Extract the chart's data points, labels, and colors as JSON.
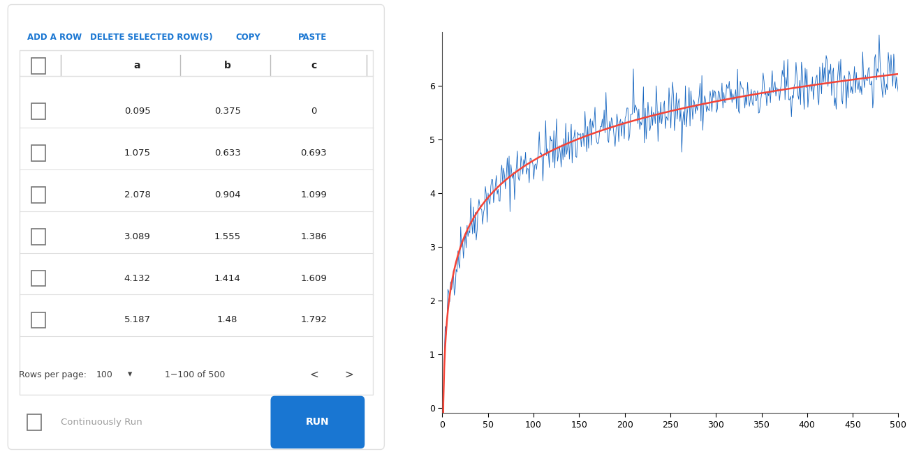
{
  "table_data": {
    "headers": [
      "a",
      "b",
      "c"
    ],
    "rows": [
      [
        0.095,
        0.375,
        0
      ],
      [
        1.075,
        0.633,
        0.693
      ],
      [
        2.078,
        0.904,
        1.099
      ],
      [
        3.089,
        1.555,
        1.386
      ],
      [
        4.132,
        1.414,
        1.609
      ],
      [
        5.187,
        1.48,
        1.792
      ]
    ],
    "rows_per_page": 100,
    "pagination": "1−100 of 500"
  },
  "toolbar_buttons": [
    "ADD A ROW",
    "DELETE SELECTED ROW(S)",
    "COPY",
    "PASTE"
  ],
  "toolbar_color": "#1976d2",
  "plot": {
    "x_min": 0,
    "x_max": 500,
    "y_min": 0,
    "y_max": 7,
    "x_ticks": [
      0,
      50,
      100,
      150,
      200,
      250,
      300,
      350,
      400,
      450,
      500
    ],
    "y_ticks": [
      0,
      1,
      2,
      3,
      4,
      5,
      6
    ],
    "blue_line_color": "#1565c0",
    "red_line_color": "#f44336",
    "n_points": 500,
    "noise_scale": 0.25
  },
  "background_color": "#ffffff",
  "panel_background": "#ffffff",
  "border_color": "#e0e0e0",
  "checkbox_color": "#757575",
  "run_button_color": "#1976d2",
  "run_button_text": "RUN",
  "continuously_run_text": "Continuously Run"
}
